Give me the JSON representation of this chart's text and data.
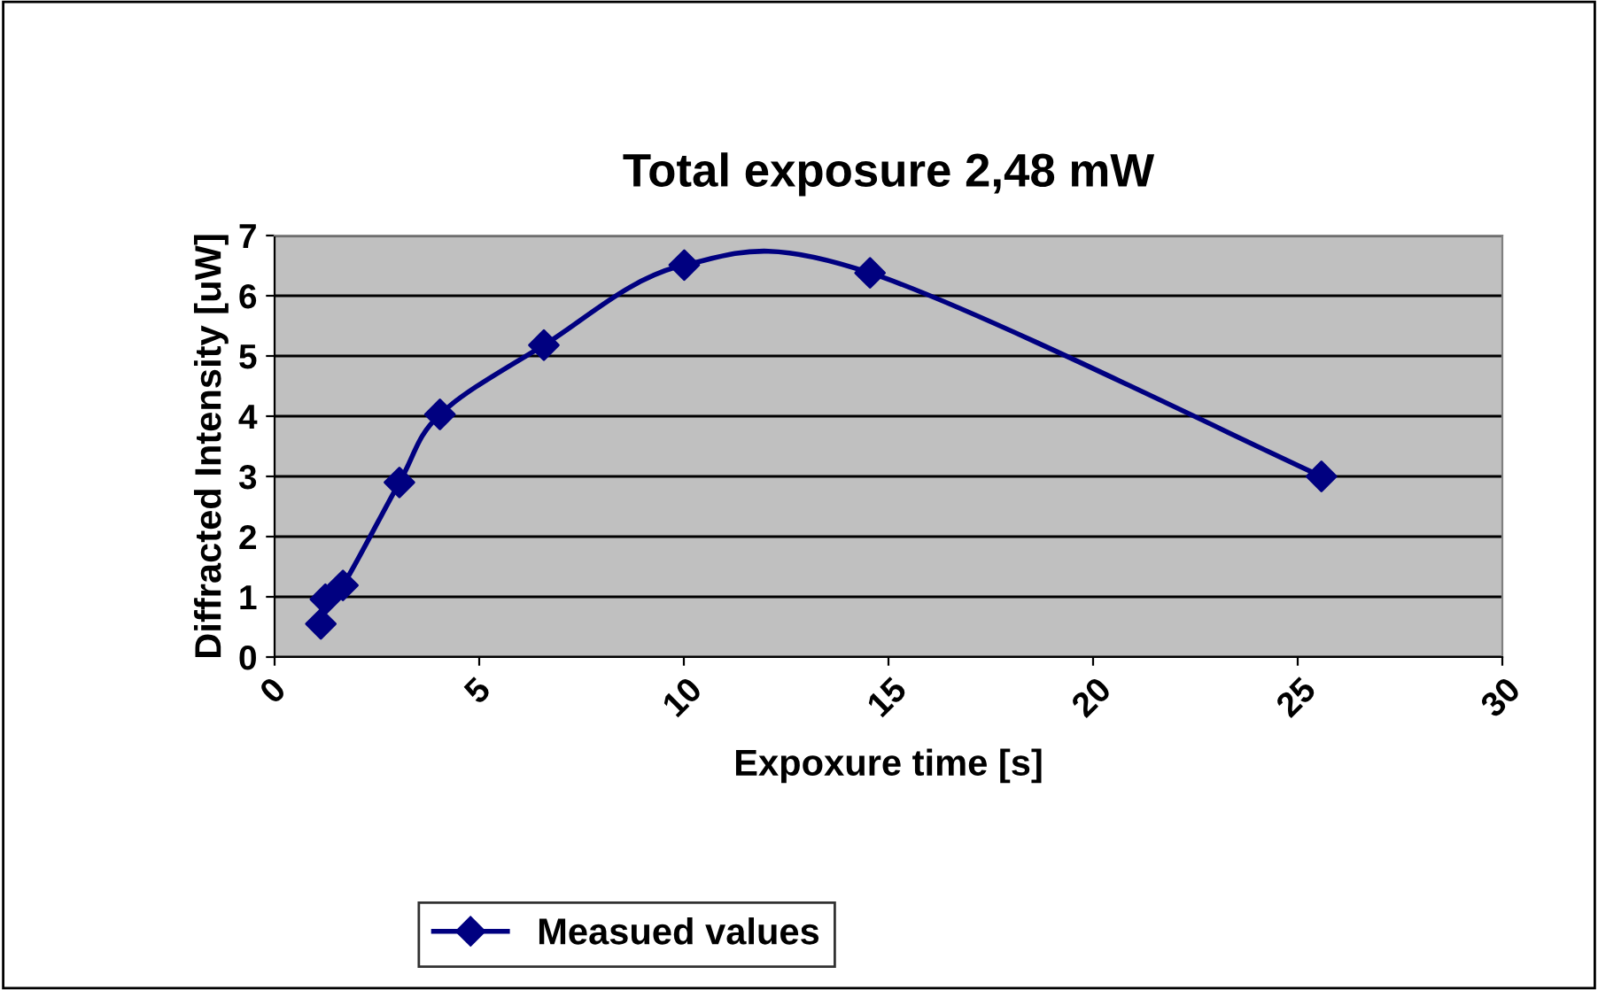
{
  "chart_data": {
    "type": "line",
    "title": "Total exposure 2,48 mW",
    "xlabel": "Expoxure time [s]",
    "ylabel": "Diffracted Intensity [uW]",
    "series": [
      {
        "name": "Measued values",
        "color": "#000080",
        "x": [
          1.13,
          1.24,
          1.67,
          3.05,
          4.04,
          6.58,
          10.01,
          14.55,
          25.58
        ],
        "values": [
          0.55,
          0.96,
          1.19,
          2.9,
          4.03,
          5.18,
          6.51,
          6.38,
          3.0
        ]
      }
    ],
    "xlim": [
      0,
      30
    ],
    "xticks": [
      0,
      5,
      10,
      15,
      20,
      25,
      30
    ],
    "ylim": [
      0,
      7
    ],
    "yticks": [
      0,
      1,
      2,
      3,
      4,
      5,
      6,
      7
    ],
    "grid": "y",
    "legend": "bottom",
    "marker": "diamond",
    "line_style": "solid"
  }
}
